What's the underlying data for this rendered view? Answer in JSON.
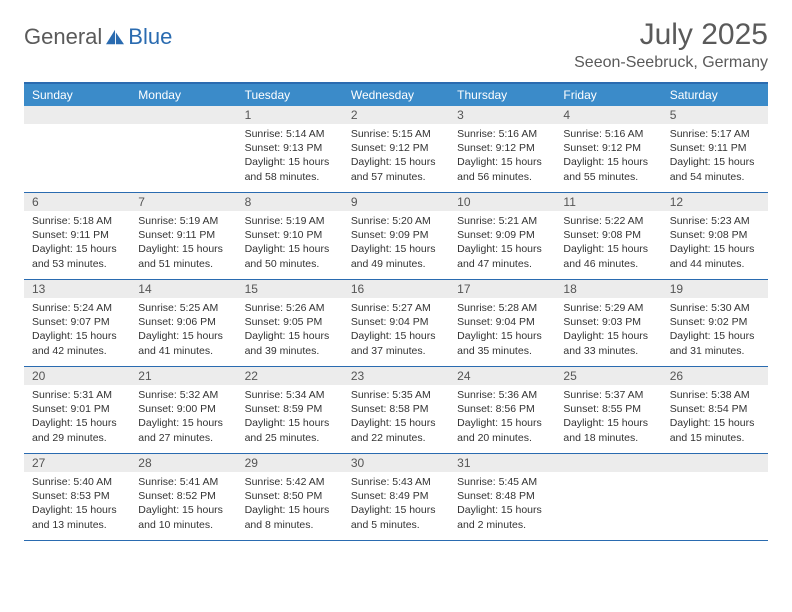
{
  "logo": {
    "general": "General",
    "blue": "Blue"
  },
  "title": "July 2025",
  "location": "Seeon-Seebruck, Germany",
  "colors": {
    "accent": "#2a6bb0",
    "header_bg": "#3b8bc9",
    "daynum_bg": "#ececec",
    "text": "#333333",
    "muted": "#5a5a5a"
  },
  "weekdays": [
    "Sunday",
    "Monday",
    "Tuesday",
    "Wednesday",
    "Thursday",
    "Friday",
    "Saturday"
  ],
  "weeks": [
    [
      null,
      null,
      {
        "n": "1",
        "sr": "5:14 AM",
        "ss": "9:13 PM",
        "dl": "15 hours and 58 minutes."
      },
      {
        "n": "2",
        "sr": "5:15 AM",
        "ss": "9:12 PM",
        "dl": "15 hours and 57 minutes."
      },
      {
        "n": "3",
        "sr": "5:16 AM",
        "ss": "9:12 PM",
        "dl": "15 hours and 56 minutes."
      },
      {
        "n": "4",
        "sr": "5:16 AM",
        "ss": "9:12 PM",
        "dl": "15 hours and 55 minutes."
      },
      {
        "n": "5",
        "sr": "5:17 AM",
        "ss": "9:11 PM",
        "dl": "15 hours and 54 minutes."
      }
    ],
    [
      {
        "n": "6",
        "sr": "5:18 AM",
        "ss": "9:11 PM",
        "dl": "15 hours and 53 minutes."
      },
      {
        "n": "7",
        "sr": "5:19 AM",
        "ss": "9:11 PM",
        "dl": "15 hours and 51 minutes."
      },
      {
        "n": "8",
        "sr": "5:19 AM",
        "ss": "9:10 PM",
        "dl": "15 hours and 50 minutes."
      },
      {
        "n": "9",
        "sr": "5:20 AM",
        "ss": "9:09 PM",
        "dl": "15 hours and 49 minutes."
      },
      {
        "n": "10",
        "sr": "5:21 AM",
        "ss": "9:09 PM",
        "dl": "15 hours and 47 minutes."
      },
      {
        "n": "11",
        "sr": "5:22 AM",
        "ss": "9:08 PM",
        "dl": "15 hours and 46 minutes."
      },
      {
        "n": "12",
        "sr": "5:23 AM",
        "ss": "9:08 PM",
        "dl": "15 hours and 44 minutes."
      }
    ],
    [
      {
        "n": "13",
        "sr": "5:24 AM",
        "ss": "9:07 PM",
        "dl": "15 hours and 42 minutes."
      },
      {
        "n": "14",
        "sr": "5:25 AM",
        "ss": "9:06 PM",
        "dl": "15 hours and 41 minutes."
      },
      {
        "n": "15",
        "sr": "5:26 AM",
        "ss": "9:05 PM",
        "dl": "15 hours and 39 minutes."
      },
      {
        "n": "16",
        "sr": "5:27 AM",
        "ss": "9:04 PM",
        "dl": "15 hours and 37 minutes."
      },
      {
        "n": "17",
        "sr": "5:28 AM",
        "ss": "9:04 PM",
        "dl": "15 hours and 35 minutes."
      },
      {
        "n": "18",
        "sr": "5:29 AM",
        "ss": "9:03 PM",
        "dl": "15 hours and 33 minutes."
      },
      {
        "n": "19",
        "sr": "5:30 AM",
        "ss": "9:02 PM",
        "dl": "15 hours and 31 minutes."
      }
    ],
    [
      {
        "n": "20",
        "sr": "5:31 AM",
        "ss": "9:01 PM",
        "dl": "15 hours and 29 minutes."
      },
      {
        "n": "21",
        "sr": "5:32 AM",
        "ss": "9:00 PM",
        "dl": "15 hours and 27 minutes."
      },
      {
        "n": "22",
        "sr": "5:34 AM",
        "ss": "8:59 PM",
        "dl": "15 hours and 25 minutes."
      },
      {
        "n": "23",
        "sr": "5:35 AM",
        "ss": "8:58 PM",
        "dl": "15 hours and 22 minutes."
      },
      {
        "n": "24",
        "sr": "5:36 AM",
        "ss": "8:56 PM",
        "dl": "15 hours and 20 minutes."
      },
      {
        "n": "25",
        "sr": "5:37 AM",
        "ss": "8:55 PM",
        "dl": "15 hours and 18 minutes."
      },
      {
        "n": "26",
        "sr": "5:38 AM",
        "ss": "8:54 PM",
        "dl": "15 hours and 15 minutes."
      }
    ],
    [
      {
        "n": "27",
        "sr": "5:40 AM",
        "ss": "8:53 PM",
        "dl": "15 hours and 13 minutes."
      },
      {
        "n": "28",
        "sr": "5:41 AM",
        "ss": "8:52 PM",
        "dl": "15 hours and 10 minutes."
      },
      {
        "n": "29",
        "sr": "5:42 AM",
        "ss": "8:50 PM",
        "dl": "15 hours and 8 minutes."
      },
      {
        "n": "30",
        "sr": "5:43 AM",
        "ss": "8:49 PM",
        "dl": "15 hours and 5 minutes."
      },
      {
        "n": "31",
        "sr": "5:45 AM",
        "ss": "8:48 PM",
        "dl": "15 hours and 2 minutes."
      },
      null,
      null
    ]
  ],
  "labels": {
    "sunrise": "Sunrise:",
    "sunset": "Sunset:",
    "daylight": "Daylight:"
  }
}
